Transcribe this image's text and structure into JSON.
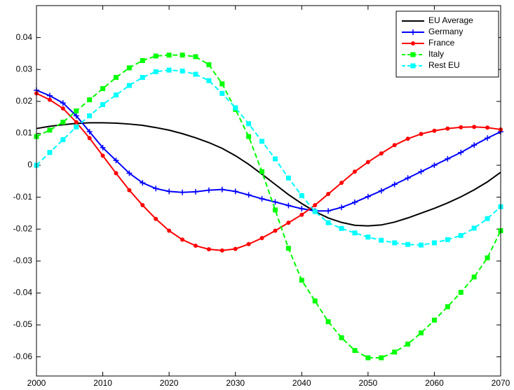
{
  "chart_data": {
    "type": "line",
    "x": [
      2000,
      2002,
      2004,
      2006,
      2008,
      2010,
      2012,
      2014,
      2016,
      2018,
      2020,
      2022,
      2024,
      2026,
      2028,
      2030,
      2032,
      2034,
      2036,
      2038,
      2040,
      2042,
      2044,
      2046,
      2048,
      2050,
      2052,
      2054,
      2056,
      2058,
      2060,
      2062,
      2064,
      2066,
      2068,
      2070
    ],
    "xlim": [
      2000,
      2070
    ],
    "xticks": [
      2000,
      2010,
      2020,
      2030,
      2040,
      2050,
      2060,
      2070
    ],
    "ylim": [
      -0.066,
      0.05
    ],
    "yticks": [
      -0.06,
      -0.05,
      -0.04,
      -0.03,
      -0.02,
      -0.01,
      0,
      0.01,
      0.02,
      0.03,
      0.04
    ],
    "legend": "upper right",
    "series": [
      {
        "name": "EU Average",
        "color": "#000000",
        "marker": "none",
        "dashed": false,
        "values": [
          0.0115,
          0.0122,
          0.0127,
          0.0131,
          0.0133,
          0.0133,
          0.0132,
          0.0129,
          0.0125,
          0.0118,
          0.011,
          0.0099,
          0.0086,
          0.0071,
          0.0053,
          0.003,
          0.0003,
          -0.0028,
          -0.006,
          -0.0092,
          -0.012,
          -0.0145,
          -0.0165,
          -0.0179,
          -0.0188,
          -0.019,
          -0.0187,
          -0.0178,
          -0.0165,
          -0.015,
          -0.0135,
          -0.0118,
          -0.0099,
          -0.0077,
          -0.0052,
          -0.0022
        ]
      },
      {
        "name": "Germany",
        "color": "#0000ff",
        "marker": "plus",
        "dashed": false,
        "values": [
          0.0235,
          0.0218,
          0.0195,
          0.0155,
          0.0105,
          0.0055,
          0.0015,
          -0.0025,
          -0.0055,
          -0.0073,
          -0.0082,
          -0.0085,
          -0.0083,
          -0.0078,
          -0.0076,
          -0.0082,
          -0.0093,
          -0.0105,
          -0.0115,
          -0.0126,
          -0.0136,
          -0.0143,
          -0.0143,
          -0.0132,
          -0.0116,
          -0.0098,
          -0.008,
          -0.006,
          -0.004,
          -0.002,
          0,
          0.002,
          0.004,
          0.0063,
          0.0085,
          0.0105
        ]
      },
      {
        "name": "France",
        "color": "#ff0000",
        "marker": "circle",
        "dashed": false,
        "values": [
          0.0225,
          0.0205,
          0.0178,
          0.0135,
          0.0085,
          0.003,
          -0.0025,
          -0.0078,
          -0.0125,
          -0.0168,
          -0.0205,
          -0.0233,
          -0.0252,
          -0.0263,
          -0.0267,
          -0.0262,
          -0.0247,
          -0.0228,
          -0.0205,
          -0.018,
          -0.0155,
          -0.0125,
          -0.009,
          -0.0055,
          -0.002,
          0.001,
          0.0037,
          0.0063,
          0.0083,
          0.0098,
          0.0108,
          0.0115,
          0.0119,
          0.012,
          0.0118,
          0.0112
        ]
      },
      {
        "name": "Italy",
        "color": "#00ff00",
        "marker": "square",
        "dashed": true,
        "values": [
          0.009,
          0.011,
          0.0135,
          0.017,
          0.0205,
          0.024,
          0.0275,
          0.0305,
          0.0328,
          0.0342,
          0.0345,
          0.0345,
          0.034,
          0.0315,
          0.0255,
          0.0175,
          0.009,
          -0.002,
          -0.014,
          -0.026,
          -0.036,
          -0.0425,
          -0.049,
          -0.054,
          -0.058,
          -0.0603,
          -0.0603,
          -0.0585,
          -0.056,
          -0.0525,
          -0.0485,
          -0.0443,
          -0.0398,
          -0.035,
          -0.029,
          -0.0205
        ]
      },
      {
        "name": "Rest EU",
        "color": "#00ffff",
        "marker": "square",
        "dashed": true,
        "values": [
          0,
          0.004,
          0.008,
          0.012,
          0.0155,
          0.019,
          0.022,
          0.025,
          0.0275,
          0.0293,
          0.0298,
          0.0295,
          0.0285,
          0.0265,
          0.0225,
          0.018,
          0.013,
          0.0075,
          0.002,
          -0.004,
          -0.0095,
          -0.0145,
          -0.018,
          -0.0198,
          -0.0212,
          -0.0225,
          -0.0235,
          -0.0243,
          -0.0248,
          -0.025,
          -0.0243,
          -0.0233,
          -0.022,
          -0.0197,
          -0.0167,
          -0.013
        ]
      }
    ]
  }
}
